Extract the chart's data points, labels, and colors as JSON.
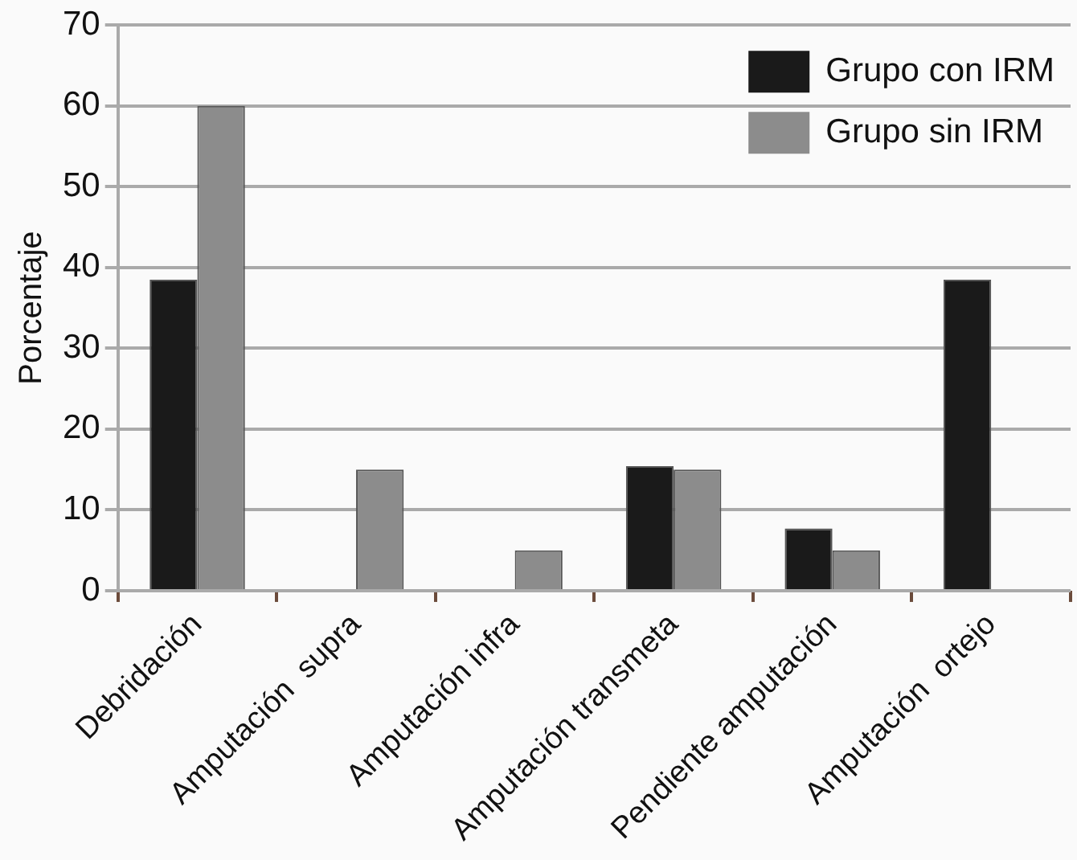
{
  "chart_data": {
    "type": "bar",
    "ylabel": "Porcentaje",
    "categories": [
      "Debridación",
      "Amputación  supra",
      "Amputación infra",
      "Amputación transmeta",
      "Pendiente amputación",
      "Amputación  ortejo"
    ],
    "series": [
      {
        "name": "Grupo con IRM",
        "color": "#1a1a1a",
        "values": [
          38.5,
          0,
          0,
          15.4,
          7.7,
          38.5
        ]
      },
      {
        "name": "Grupo sin IRM",
        "color": "#8c8c8c",
        "values": [
          60,
          15,
          5,
          15,
          5,
          0
        ]
      }
    ],
    "ylim": [
      0,
      70
    ],
    "yticks": [
      0,
      10,
      20,
      30,
      40,
      50,
      60,
      70
    ],
    "grid": "y",
    "legend": "top right"
  }
}
